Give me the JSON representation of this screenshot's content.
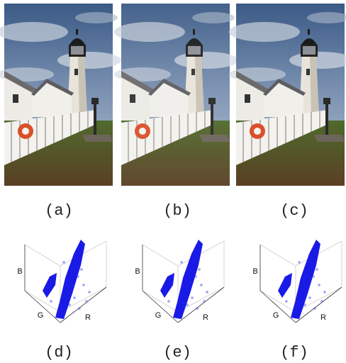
{
  "figure": {
    "images": [
      {
        "caption": "(a)"
      },
      {
        "caption": "(b)"
      },
      {
        "caption": "(c)"
      }
    ],
    "plots": [
      {
        "caption": "(d)",
        "axis_labels": {
          "z": "B",
          "y": "G",
          "x": "R"
        }
      },
      {
        "caption": "(e)",
        "axis_labels": {
          "z": "B",
          "y": "G",
          "x": "R"
        }
      },
      {
        "caption": "(f)",
        "axis_labels": {
          "z": "B",
          "y": "G",
          "x": "R"
        }
      }
    ]
  }
}
